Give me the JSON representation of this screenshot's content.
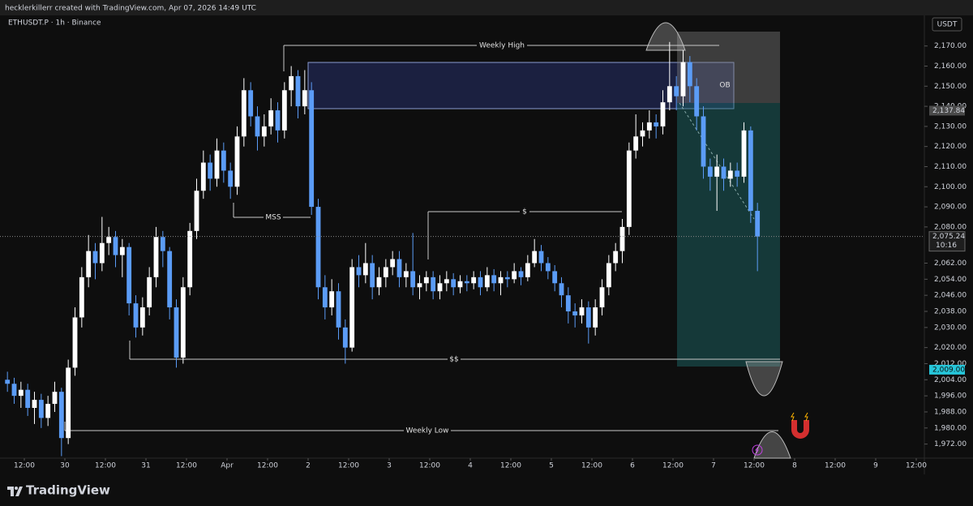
{
  "header": {
    "credit": "hecklerkillerr created with TradingView.com, Apr 07, 2026 14:49 UTC",
    "symbol": "ETHUSDT.P · 1h · Binance"
  },
  "footer": {
    "logo": "TradingView"
  },
  "chart_data": {
    "type": "candlestick",
    "currency": "USDT",
    "x": [
      -5,
      -3,
      -1,
      1,
      3,
      5,
      7,
      9,
      11,
      13,
      15,
      17,
      19,
      21,
      23,
      25,
      27,
      29,
      31,
      33,
      35,
      37,
      39,
      41,
      43,
      45,
      47,
      49,
      51,
      53,
      55,
      57,
      59,
      61,
      63,
      65,
      67,
      69,
      71,
      73,
      75,
      77,
      79,
      81,
      83,
      85,
      87,
      89,
      91,
      93,
      95,
      97,
      99,
      101,
      103,
      105,
      107,
      109,
      111,
      113,
      115,
      117,
      119,
      121,
      123,
      125,
      127,
      129,
      131,
      133,
      135,
      137,
      139,
      141,
      143,
      145,
      147,
      149,
      151,
      153,
      155,
      157,
      159,
      161,
      163,
      165,
      167,
      169,
      171,
      173,
      175,
      177,
      179,
      181,
      183,
      185,
      187,
      189,
      191,
      193,
      195,
      197,
      199,
      201,
      203,
      205,
      207,
      209,
      211,
      213,
      215,
      217
    ],
    "open": [
      2004,
      2002,
      1996,
      1999,
      1990,
      1994,
      1985,
      1992,
      1998,
      1975,
      2010,
      2035,
      2055,
      2068,
      2062,
      2072,
      2075,
      2066,
      2070,
      2042,
      2030,
      2040,
      2055,
      2075,
      2068,
      2040,
      2015,
      2050,
      2078,
      2098,
      2112,
      2104,
      2118,
      2108,
      2100,
      2125,
      2148,
      2135,
      2125,
      2130,
      2138,
      2128,
      2148,
      2155,
      2140,
      2148,
      2090,
      2050,
      2040,
      2048,
      2030,
      2020,
      2060,
      2056,
      2062,
      2050,
      2055,
      2060,
      2064,
      2055,
      2058,
      2050,
      2052,
      2055,
      2048,
      2052,
      2054,
      2050,
      2053,
      2052,
      2055,
      2050,
      2056,
      2052,
      2055,
      2054,
      2058,
      2055,
      2062,
      2068,
      2062,
      2058,
      2052,
      2046,
      2038,
      2036,
      2040,
      2030,
      2040,
      2050,
      2062,
      2068,
      2080,
      2118,
      2125,
      2128,
      2132,
      2130,
      2142,
      2150,
      2145,
      2162,
      2150,
      2135,
      2110,
      2105,
      2110,
      2104,
      2108,
      2105,
      2128,
      2088
    ],
    "high": [
      2008,
      2005,
      2003,
      2002,
      1998,
      1997,
      1996,
      2003,
      2000,
      2014,
      2040,
      2060,
      2076,
      2072,
      2085,
      2080,
      2078,
      2074,
      2072,
      2046,
      2045,
      2060,
      2080,
      2078,
      2070,
      2044,
      2055,
      2082,
      2104,
      2118,
      2116,
      2124,
      2122,
      2112,
      2130,
      2154,
      2152,
      2140,
      2136,
      2144,
      2142,
      2152,
      2160,
      2158,
      2158,
      2152,
      2094,
      2056,
      2054,
      2052,
      2034,
      2064,
      2066,
      2072,
      2066,
      2060,
      2064,
      2068,
      2068,
      2062,
      2077,
      2056,
      2058,
      2058,
      2056,
      2058,
      2057,
      2056,
      2056,
      2058,
      2058,
      2060,
      2059,
      2058,
      2058,
      2062,
      2060,
      2066,
      2074,
      2071,
      2065,
      2061,
      2055,
      2050,
      2042,
      2044,
      2043,
      2044,
      2054,
      2066,
      2072,
      2084,
      2122,
      2136,
      2132,
      2138,
      2136,
      2148,
      2172,
      2155,
      2168,
      2165,
      2154,
      2140,
      2114,
      2116,
      2114,
      2112,
      2112,
      2132,
      2130,
      2092
    ],
    "low": [
      1998,
      1992,
      1990,
      1986,
      1982,
      1980,
      1981,
      1988,
      1966,
      1972,
      2006,
      2030,
      2050,
      2054,
      2058,
      2066,
      2060,
      2055,
      2036,
      2025,
      2026,
      2036,
      2050,
      2060,
      2034,
      2010,
      2012,
      2046,
      2074,
      2094,
      2098,
      2100,
      2102,
      2094,
      2096,
      2120,
      2130,
      2118,
      2120,
      2126,
      2122,
      2124,
      2140,
      2134,
      2136,
      2086,
      2044,
      2034,
      2036,
      2024,
      2012,
      2018,
      2050,
      2052,
      2044,
      2046,
      2050,
      2056,
      2050,
      2050,
      2046,
      2044,
      2048,
      2044,
      2044,
      2048,
      2046,
      2047,
      2048,
      2049,
      2046,
      2048,
      2048,
      2046,
      2050,
      2052,
      2051,
      2053,
      2060,
      2058,
      2054,
      2048,
      2040,
      2032,
      2030,
      2032,
      2022,
      2026,
      2036,
      2046,
      2058,
      2062,
      2076,
      2114,
      2120,
      2124,
      2124,
      2126,
      2138,
      2138,
      2140,
      2142,
      2128,
      2104,
      2098,
      2088,
      2098,
      2100,
      2100,
      2102,
      2082,
      2058
    ],
    "close": [
      2002,
      1996,
      1999,
      1990,
      1994,
      1985,
      1992,
      1998,
      1975,
      2010,
      2035,
      2055,
      2068,
      2062,
      2072,
      2075,
      2066,
      2070,
      2042,
      2030,
      2040,
      2055,
      2075,
      2068,
      2040,
      2015,
      2050,
      2078,
      2098,
      2112,
      2104,
      2118,
      2108,
      2100,
      2125,
      2148,
      2135,
      2125,
      2130,
      2138,
      2128,
      2148,
      2155,
      2140,
      2148,
      2090,
      2050,
      2040,
      2048,
      2030,
      2020,
      2060,
      2056,
      2062,
      2050,
      2055,
      2060,
      2064,
      2055,
      2058,
      2050,
      2052,
      2055,
      2048,
      2052,
      2054,
      2050,
      2053,
      2052,
      2055,
      2050,
      2056,
      2052,
      2055,
      2054,
      2058,
      2055,
      2062,
      2068,
      2062,
      2058,
      2052,
      2046,
      2038,
      2036,
      2040,
      2030,
      2040,
      2050,
      2062,
      2068,
      2080,
      2118,
      2125,
      2128,
      2132,
      2130,
      2142,
      2150,
      2145,
      2162,
      2150,
      2135,
      2110,
      2105,
      2110,
      2104,
      2108,
      2105,
      2128,
      2088,
      2075.24
    ],
    "up_color": "#ffffff",
    "down_color": "#5b9cf6",
    "xlim": [
      -7.2,
      266.4
    ],
    "xticks": [
      {
        "value": 0,
        "label": "12:00"
      },
      {
        "value": 12,
        "label": "30"
      },
      {
        "value": 24,
        "label": "12:00"
      },
      {
        "value": 36,
        "label": "31"
      },
      {
        "value": 48,
        "label": "12:00"
      },
      {
        "value": 60,
        "label": "Apr"
      },
      {
        "value": 72,
        "label": "12:00"
      },
      {
        "value": 84,
        "label": "2"
      },
      {
        "value": 96,
        "label": "12:00"
      },
      {
        "value": 108,
        "label": "3"
      },
      {
        "value": 120,
        "label": "12:00"
      },
      {
        "value": 132,
        "label": "4"
      },
      {
        "value": 144,
        "label": "12:00"
      },
      {
        "value": 156,
        "label": "5"
      },
      {
        "value": 168,
        "label": "12:00"
      },
      {
        "value": 180,
        "label": "6"
      },
      {
        "value": 192,
        "label": "12:00"
      },
      {
        "value": 204,
        "label": "7"
      },
      {
        "value": 216,
        "label": "12:00"
      },
      {
        "value": 228,
        "label": "8"
      },
      {
        "value": 240,
        "label": "12:00"
      },
      {
        "value": 252,
        "label": "9"
      },
      {
        "value": 264,
        "label": "12:00"
      }
    ],
    "ylim": [
      1965,
      2184
    ],
    "yticks": [
      {
        "value": 2170,
        "label": "2,170.00"
      },
      {
        "value": 2160,
        "label": "2,160.00"
      },
      {
        "value": 2150,
        "label": "2,150.00"
      },
      {
        "value": 2140,
        "label": "2,140.00"
      },
      {
        "value": 2130,
        "label": "2,130.00"
      },
      {
        "value": 2120,
        "label": "2,120.00"
      },
      {
        "value": 2110,
        "label": "2,110.00"
      },
      {
        "value": 2100,
        "label": "2,100.00"
      },
      {
        "value": 2090,
        "label": "2,090.00"
      },
      {
        "value": 2080,
        "label": "2,080.00"
      },
      {
        "value": 2062,
        "label": "2,062.00"
      },
      {
        "value": 2054,
        "label": "2,054.00"
      },
      {
        "value": 2046,
        "label": "2,046.00"
      },
      {
        "value": 2038,
        "label": "2,038.00"
      },
      {
        "value": 2030,
        "label": "2,030.00"
      },
      {
        "value": 2020,
        "label": "2,020.00"
      },
      {
        "value": 2012,
        "label": "2,012.00"
      },
      {
        "value": 2004,
        "label": "2,004.00"
      },
      {
        "value": 1996,
        "label": "1,996.00"
      },
      {
        "value": 1988,
        "label": "1,988.00"
      },
      {
        "value": 1980,
        "label": "1,980.00"
      },
      {
        "value": 1972,
        "label": "1,972.00"
      }
    ],
    "price_labels": [
      {
        "value": 2137.84,
        "label": "2,137.84",
        "color": "#4a4a4a"
      },
      {
        "value": 2075.24,
        "label": "2,075.24",
        "color": "#1e1e1e"
      },
      {
        "value": 2009,
        "label": "2,009.00",
        "color": "#26c6da"
      }
    ],
    "countdown": "10:16",
    "annotations": {
      "weekly_high": "Weekly High",
      "ob": "OB",
      "mss": "MSS",
      "dollar": "$",
      "double_dollar": "$$",
      "weekly_low": "Weekly Low"
    }
  }
}
